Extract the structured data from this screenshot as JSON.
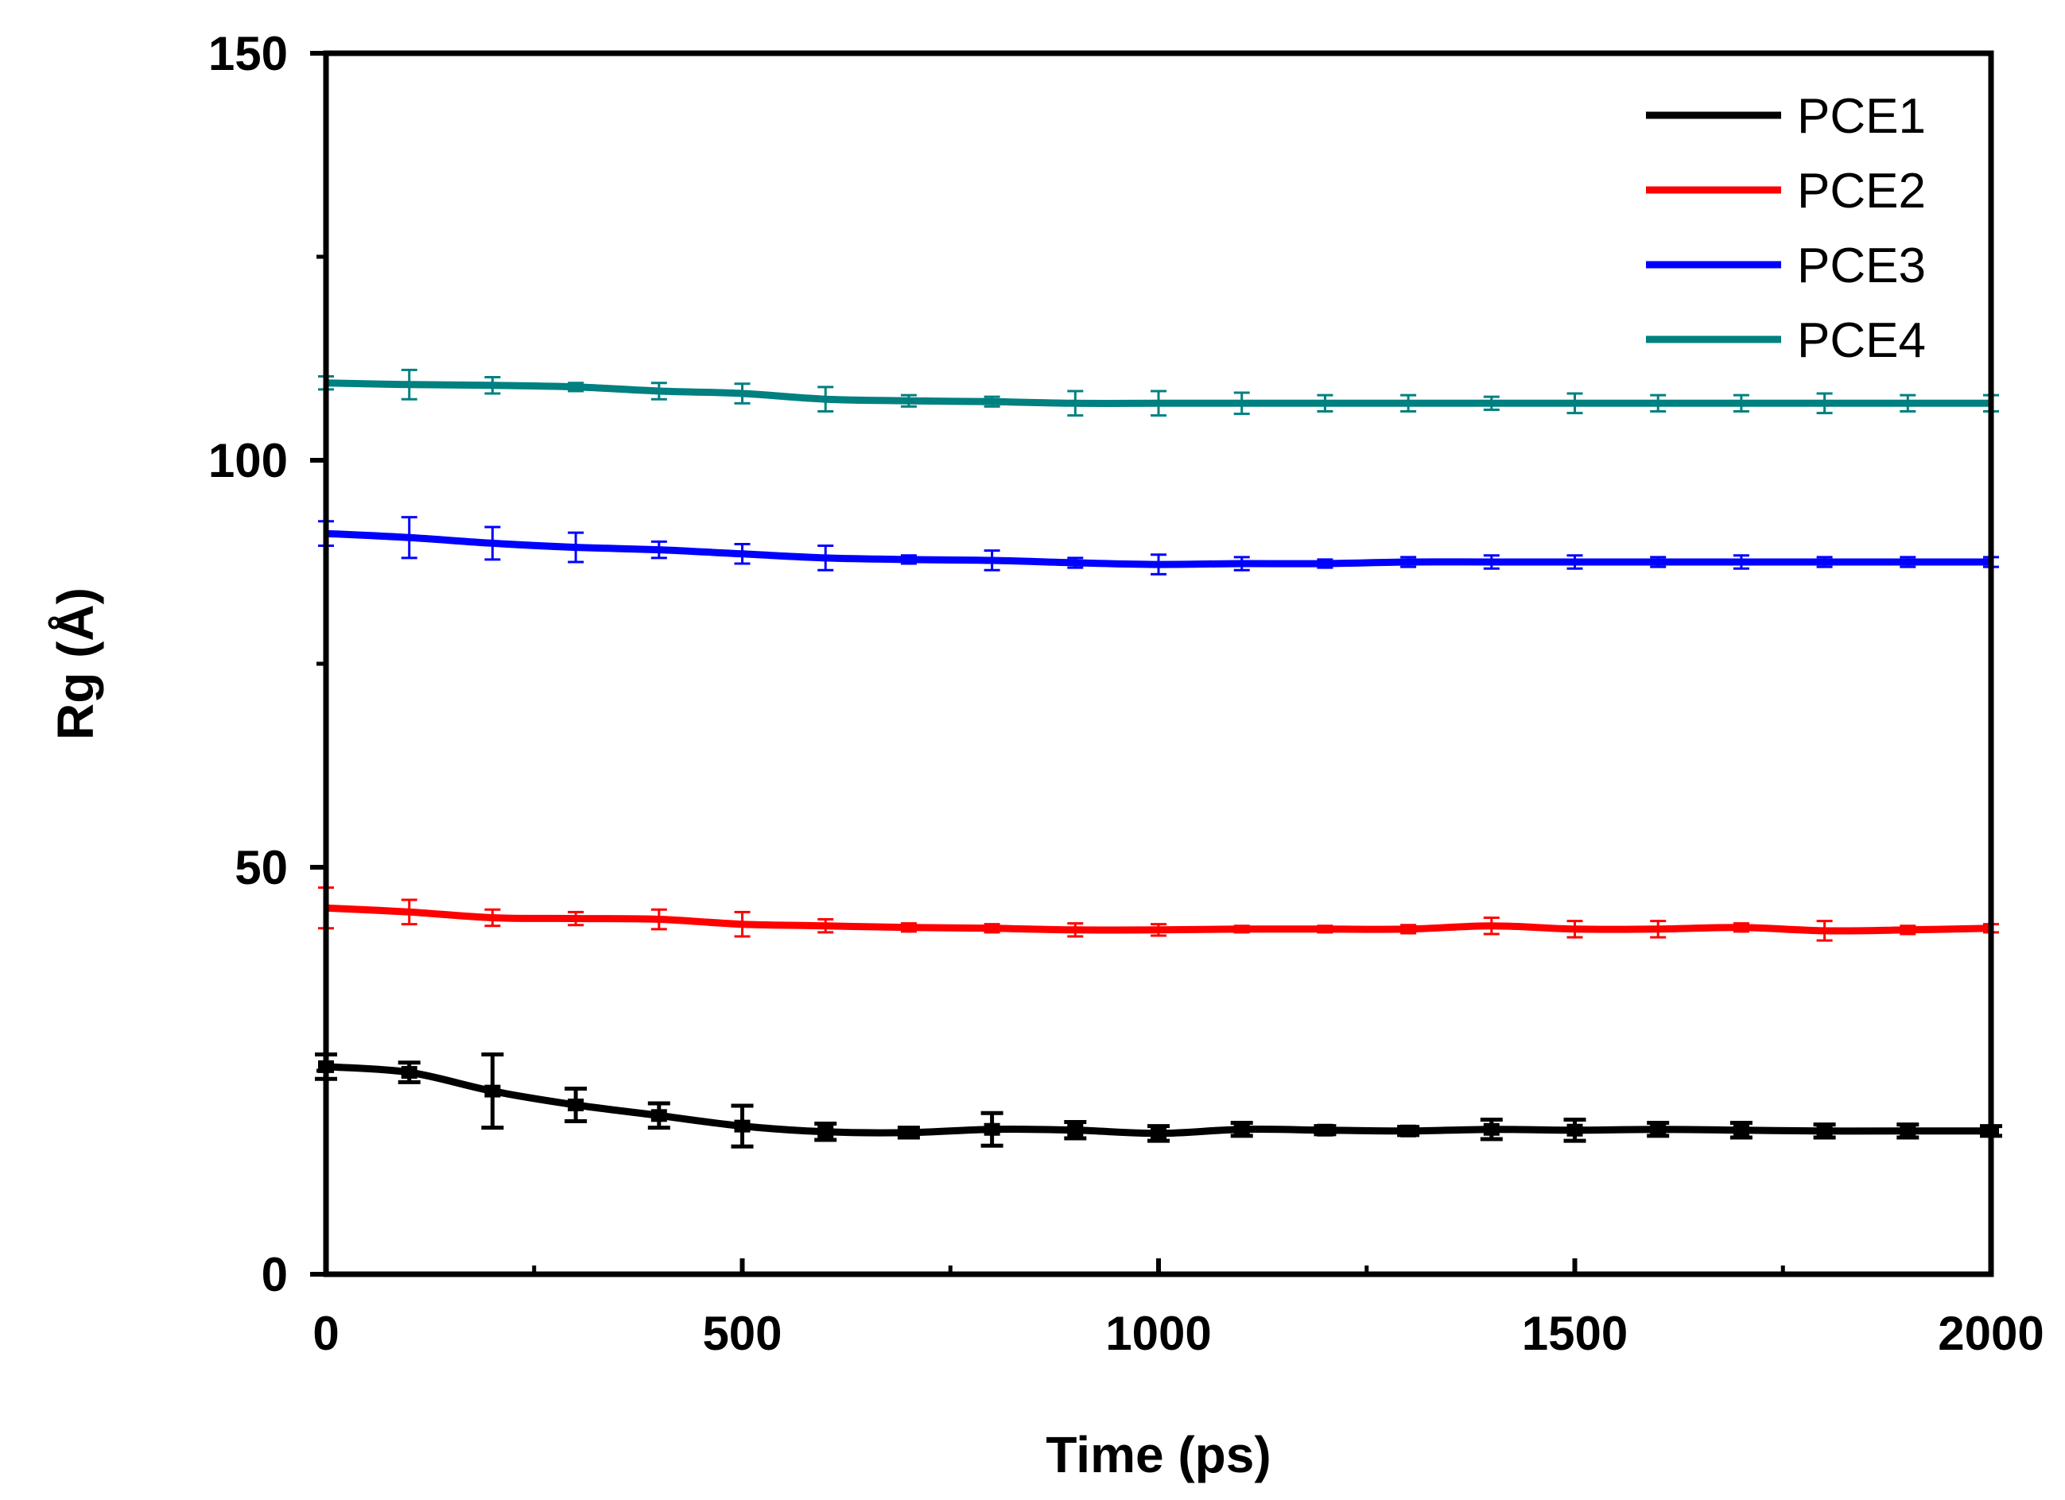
{
  "chart_data": {
    "type": "line",
    "title": "",
    "xlabel": "Time (ps)",
    "ylabel": "Rg (Å)",
    "xlim": [
      0,
      2000
    ],
    "ylim": [
      0,
      150
    ],
    "x_ticks": [
      "0",
      "500",
      "1000",
      "1500",
      "2000"
    ],
    "y_ticks": [
      "0",
      "50",
      "100",
      "150"
    ],
    "legend_position": "top-right",
    "grid": false,
    "x": [
      0,
      100,
      200,
      300,
      400,
      500,
      600,
      700,
      800,
      900,
      1000,
      1100,
      1200,
      1300,
      1400,
      1500,
      1600,
      1700,
      1800,
      1900,
      2000
    ],
    "series": [
      {
        "name": "PCE1",
        "color": "#000000",
        "values": [
          25.5,
          24.8,
          22.5,
          20.8,
          19.5,
          18.2,
          17.5,
          17.4,
          17.8,
          17.7,
          17.3,
          17.8,
          17.7,
          17.6,
          17.8,
          17.7,
          17.8,
          17.7,
          17.6,
          17.6,
          17.6
        ],
        "errors": [
          1.5,
          1.2,
          4.5,
          2.0,
          1.5,
          2.5,
          1.0,
          0.6,
          2.0,
          1.0,
          0.9,
          0.8,
          0.5,
          0.5,
          1.2,
          1.3,
          0.8,
          0.9,
          0.8,
          0.8,
          0.6
        ]
      },
      {
        "name": "PCE2",
        "color": "#ff0000",
        "values": [
          45.0,
          44.5,
          43.8,
          43.7,
          43.6,
          43.0,
          42.8,
          42.6,
          42.5,
          42.3,
          42.3,
          42.4,
          42.4,
          42.4,
          42.8,
          42.4,
          42.4,
          42.6,
          42.2,
          42.3,
          42.5
        ],
        "errors": [
          2.5,
          1.5,
          1.0,
          0.8,
          1.2,
          1.5,
          0.8,
          0.5,
          0.5,
          0.8,
          0.7,
          0.4,
          0.4,
          0.5,
          1.0,
          1.0,
          1.0,
          0.5,
          1.2,
          0.5,
          0.5
        ]
      },
      {
        "name": "PCE3",
        "color": "#0000ff",
        "values": [
          91.0,
          90.5,
          89.8,
          89.3,
          89.0,
          88.5,
          88.0,
          87.8,
          87.7,
          87.4,
          87.2,
          87.3,
          87.3,
          87.5,
          87.5,
          87.5,
          87.5,
          87.5,
          87.5,
          87.5,
          87.5
        ],
        "errors": [
          1.5,
          2.5,
          2.0,
          1.8,
          1.0,
          1.2,
          1.5,
          0.5,
          1.2,
          0.6,
          1.2,
          0.8,
          0.5,
          0.6,
          0.8,
          0.8,
          0.6,
          0.8,
          0.6,
          0.6,
          0.6
        ]
      },
      {
        "name": "PCE4",
        "color": "#008080",
        "values": [
          109.5,
          109.3,
          109.2,
          109.0,
          108.5,
          108.2,
          107.5,
          107.3,
          107.2,
          107.0,
          107.0,
          107.0,
          107.0,
          107.0,
          107.0,
          107.0,
          107.0,
          107.0,
          107.0,
          107.0,
          107.0
        ],
        "errors": [
          0.8,
          1.8,
          1.0,
          0.5,
          1.0,
          1.2,
          1.5,
          0.7,
          0.6,
          1.5,
          1.5,
          1.3,
          1.0,
          1.0,
          0.8,
          1.2,
          1.0,
          1.0,
          1.2,
          1.0,
          1.0
        ]
      }
    ]
  }
}
